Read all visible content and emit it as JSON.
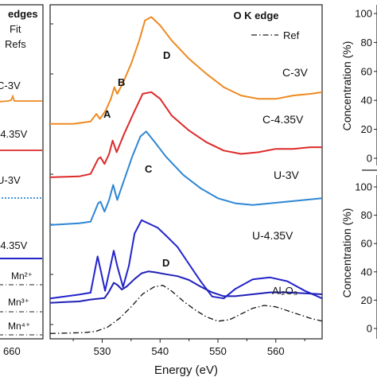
{
  "chart_data": {
    "type": "line",
    "main_panel": {
      "title": "O K edge",
      "legend": [
        {
          "label": "Ref",
          "style": "dash-dot"
        }
      ],
      "xlabel": "Energy (eV)",
      "xlim": [
        521,
        568
      ],
      "x_ticks": [
        530,
        540,
        550,
        560
      ],
      "series": [
        {
          "name": "C-3V",
          "color": "#ee8a22",
          "points": [
            [
              521,
              0.2
            ],
            [
              525,
              0.2
            ],
            [
              528,
              0.35
            ],
            [
              529,
              0.8
            ],
            [
              529.6,
              0.5
            ],
            [
              530.6,
              1.0
            ],
            [
              531.5,
              1.7
            ],
            [
              532.1,
              2.4
            ],
            [
              532.6,
              2.0
            ],
            [
              533.5,
              2.6
            ],
            [
              535,
              3.8
            ],
            [
              536.4,
              5.2
            ],
            [
              537.4,
              6.4
            ],
            [
              538.5,
              6.6
            ],
            [
              540,
              6.1
            ],
            [
              542,
              5.2
            ],
            [
              545,
              4.1
            ],
            [
              548,
              3.2
            ],
            [
              551,
              2.4
            ],
            [
              554,
              1.9
            ],
            [
              557,
              1.7
            ],
            [
              560,
              1.7
            ],
            [
              563,
              1.9
            ],
            [
              566,
              2.0
            ],
            [
              568,
              2.1
            ]
          ]
        },
        {
          "name": "C-4.35V",
          "color": "#dd2a2a",
          "points": [
            [
              521,
              0.1
            ],
            [
              526,
              0.15
            ],
            [
              528,
              0.3
            ],
            [
              529.3,
              1.2
            ],
            [
              529.7,
              1.3
            ],
            [
              530.4,
              0.9
            ],
            [
              531.2,
              1.5
            ],
            [
              531.8,
              2.3
            ],
            [
              532.5,
              1.6
            ],
            [
              533.8,
              2.7
            ],
            [
              535.5,
              4.0
            ],
            [
              537,
              5.1
            ],
            [
              538.5,
              5.2
            ],
            [
              540,
              4.8
            ],
            [
              542,
              3.8
            ],
            [
              545,
              2.9
            ],
            [
              548,
              2.2
            ],
            [
              551,
              1.7
            ],
            [
              554,
              1.5
            ],
            [
              557,
              1.6
            ],
            [
              560,
              1.8
            ],
            [
              563,
              1.8
            ],
            [
              566,
              1.9
            ],
            [
              568,
              1.9
            ]
          ]
        },
        {
          "name": "U-3V",
          "color": "#2e86d4",
          "points": [
            [
              521,
              0.1
            ],
            [
              526,
              0.2
            ],
            [
              528,
              0.3
            ],
            [
              529.3,
              1.4
            ],
            [
              529.7,
              1.5
            ],
            [
              530.4,
              0.9
            ],
            [
              531.2,
              1.6
            ],
            [
              531.9,
              2.5
            ],
            [
              532.6,
              1.6
            ],
            [
              533.8,
              2.8
            ],
            [
              535.2,
              4.2
            ],
            [
              536.6,
              5.4
            ],
            [
              537.6,
              5.7
            ],
            [
              539,
              5.1
            ],
            [
              541,
              4.2
            ],
            [
              544,
              3.1
            ],
            [
              547,
              2.3
            ],
            [
              550,
              1.7
            ],
            [
              553,
              1.4
            ],
            [
              556,
              1.3
            ],
            [
              559,
              1.4
            ],
            [
              562,
              1.5
            ],
            [
              565,
              1.6
            ],
            [
              568,
              1.7
            ]
          ]
        },
        {
          "name": "U-4.35V",
          "color": "#2323cc",
          "points": [
            [
              521,
              0.2
            ],
            [
              526,
              0.4
            ],
            [
              528,
              0.5
            ],
            [
              529.2,
              2.4
            ],
            [
              529.8,
              1.6
            ],
            [
              530.5,
              0.6
            ],
            [
              531.3,
              1.7
            ],
            [
              532,
              2.7
            ],
            [
              532.6,
              1.9
            ],
            [
              533.6,
              0.8
            ],
            [
              534.6,
              1.9
            ],
            [
              535.6,
              3.6
            ],
            [
              536.8,
              4.3
            ],
            [
              538.2,
              4.1
            ],
            [
              539.6,
              3.9
            ],
            [
              541,
              3.5
            ],
            [
              543,
              2.9
            ],
            [
              545,
              2.0
            ],
            [
              547,
              1.1
            ],
            [
              549,
              0.3
            ],
            [
              551,
              0.2
            ],
            [
              553,
              0.7
            ],
            [
              556,
              1.2
            ],
            [
              559,
              1.3
            ],
            [
              562,
              1.1
            ],
            [
              565,
              0.6
            ],
            [
              568,
              0.2
            ]
          ]
        },
        {
          "name": "Al2O3",
          "color": "#2020b8",
          "points": [
            [
              521,
              0.1
            ],
            [
              524,
              0.2
            ],
            [
              526,
              0.25
            ],
            [
              528,
              0.45
            ],
            [
              529.6,
              0.55
            ],
            [
              530.4,
              0.6
            ],
            [
              531.1,
              1.2
            ],
            [
              532,
              2.2
            ],
            [
              532.6,
              2.0
            ],
            [
              533.4,
              1.5
            ],
            [
              534.2,
              1.8
            ],
            [
              535.6,
              2.6
            ],
            [
              536.8,
              3.2
            ],
            [
              538,
              3.4
            ],
            [
              539.2,
              3.3
            ],
            [
              541,
              3.1
            ],
            [
              543,
              2.9
            ],
            [
              545,
              2.5
            ],
            [
              547,
              1.8
            ],
            [
              549,
              1.2
            ],
            [
              551,
              0.8
            ],
            [
              553,
              0.8
            ],
            [
              556,
              1.0
            ],
            [
              559,
              1.2
            ],
            [
              562,
              1.2
            ],
            [
              565,
              1.1
            ],
            [
              568,
              1.0
            ]
          ]
        },
        {
          "name": "Ref",
          "color": "#111111",
          "style": "dash-dot",
          "points": [
            [
              521,
              0.02
            ],
            [
              527,
              0.05
            ],
            [
              529,
              0.1
            ],
            [
              531,
              0.25
            ],
            [
              533,
              0.55
            ],
            [
              535,
              0.95
            ],
            [
              537,
              1.4
            ],
            [
              539,
              1.65
            ],
            [
              540.5,
              1.7
            ],
            [
              542,
              1.5
            ],
            [
              544,
              1.15
            ],
            [
              546,
              0.85
            ],
            [
              548,
              0.6
            ],
            [
              550,
              0.45
            ],
            [
              552,
              0.5
            ],
            [
              554,
              0.7
            ],
            [
              556,
              0.9
            ],
            [
              558,
              1.0
            ],
            [
              560,
              0.95
            ],
            [
              563,
              0.75
            ],
            [
              566,
              0.55
            ],
            [
              568,
              0.45
            ]
          ]
        }
      ],
      "curve_labels": [
        "C-3V",
        "C-4.35V",
        "U-3V",
        "U-4.35V",
        "Al2O3"
      ],
      "peak_labels": [
        "A",
        "B",
        "C",
        "D",
        "D"
      ]
    },
    "left_panel": {
      "legend": [
        "edges",
        "Fit",
        "Refs"
      ],
      "curve_labels": [
        "C-3V",
        "-4.35V",
        "U-3V",
        "-4.35V"
      ],
      "ref_labels": [
        "Mn2+",
        "Mn3+",
        "Mn4+"
      ],
      "x_ticks": [
        "660"
      ]
    },
    "right_panel": {
      "ylabel": "Concentration (%)",
      "top_ticks": [
        0,
        20,
        40,
        60,
        80,
        100
      ],
      "bottom_ticks": [
        0,
        20,
        40,
        60,
        80,
        100
      ]
    }
  }
}
